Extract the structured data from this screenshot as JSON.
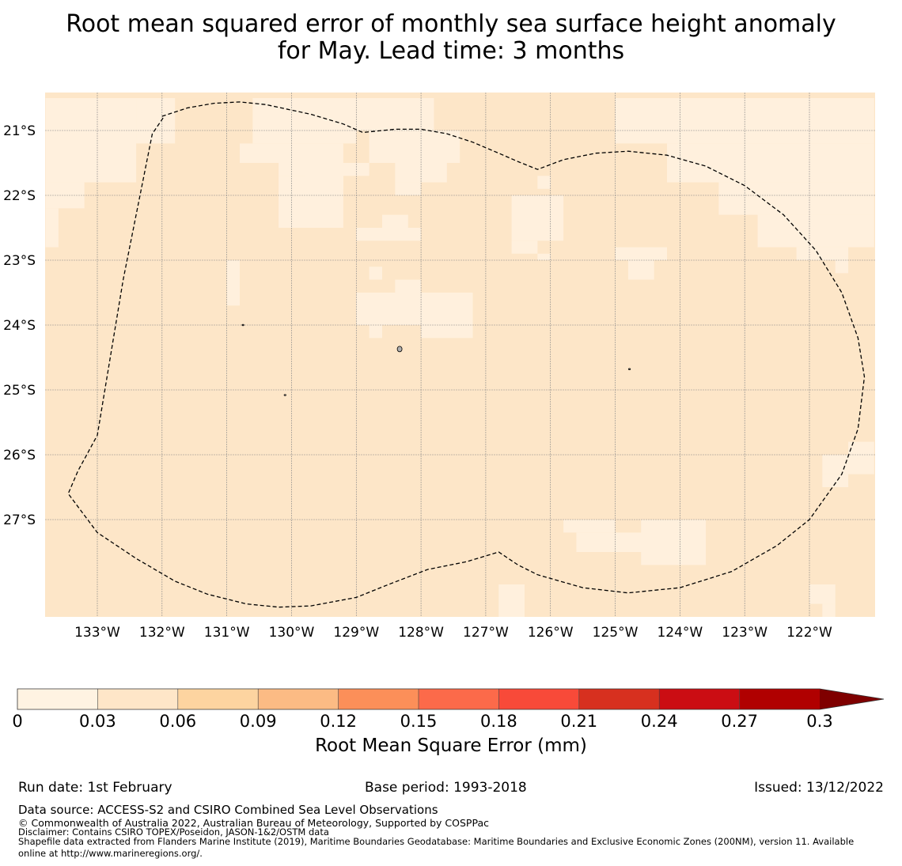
{
  "title": {
    "line1": "Root mean squared error of monthly sea surface height anomaly",
    "line2": "for May. Lead time: 3 months"
  },
  "map": {
    "lat_labels": [
      "21°S",
      "22°S",
      "23°S",
      "24°S",
      "25°S",
      "26°S",
      "27°S"
    ],
    "lon_labels": [
      "133°W",
      "132°W",
      "131°W",
      "130°W",
      "129°W",
      "128°W",
      "127°W",
      "126°W",
      "125°W",
      "124°W",
      "123°W",
      "122°W"
    ],
    "extent": {
      "lon_min": -133.8,
      "lon_max": -121.0,
      "lat_min": -28.5,
      "lat_max": -20.4
    },
    "grid_resolution_deg": 0.25,
    "colors": {
      "ocean_base": "#fde6c8",
      "low_error": "#fff0dd",
      "gridline": "#888888"
    },
    "low_error_cells": [
      [
        -132.4,
        -131.8,
        -20.5,
        -21.2
      ],
      [
        -133.8,
        -132.4,
        -20.5,
        -21.8
      ],
      [
        -133.8,
        -133.2,
        -21.8,
        -22.2
      ],
      [
        -133.8,
        -133.6,
        -22.2,
        -22.8
      ],
      [
        -130.6,
        -129.0,
        -20.5,
        -21.2
      ],
      [
        -130.8,
        -129.4,
        -21.2,
        -21.5
      ],
      [
        -130.2,
        -128.8,
        -21.5,
        -21.7
      ],
      [
        -130.2,
        -129.2,
        -21.7,
        -22.5
      ],
      [
        -129.8,
        -129.2,
        -21.2,
        -21.9
      ],
      [
        -129.0,
        -127.8,
        -20.5,
        -21.0
      ],
      [
        -128.8,
        -127.4,
        -21.0,
        -21.5
      ],
      [
        -128.4,
        -127.6,
        -21.5,
        -21.8
      ],
      [
        -128.4,
        -128.0,
        -21.8,
        -22.0
      ],
      [
        -126.6,
        -125.8,
        -22.0,
        -22.7
      ],
      [
        -126.6,
        -126.2,
        -22.7,
        -22.9
      ],
      [
        -126.2,
        -126.0,
        -22.9,
        -23.0
      ],
      [
        -126.2,
        -126.0,
        -21.7,
        -21.9
      ],
      [
        -129.0,
        -128.0,
        -22.5,
        -22.7
      ],
      [
        -128.6,
        -128.2,
        -22.3,
        -22.5
      ],
      [
        -131.0,
        -130.8,
        -23.0,
        -23.7
      ],
      [
        -129.0,
        -127.2,
        -23.5,
        -24.0
      ],
      [
        -128.8,
        -128.6,
        -23.1,
        -23.3
      ],
      [
        -128.4,
        -128.0,
        -23.3,
        -23.5
      ],
      [
        -128.8,
        -128.6,
        -24.0,
        -24.2
      ],
      [
        -128.0,
        -127.2,
        -24.0,
        -24.2
      ],
      [
        -124.8,
        -124.0,
        -20.5,
        -21.0
      ],
      [
        -125.0,
        -121.0,
        -20.5,
        -21.2
      ],
      [
        -124.2,
        -121.0,
        -21.2,
        -21.8
      ],
      [
        -123.4,
        -121.0,
        -21.8,
        -22.3
      ],
      [
        -122.8,
        -121.0,
        -22.3,
        -22.8
      ],
      [
        -122.2,
        -121.4,
        -22.8,
        -23.0
      ],
      [
        -121.6,
        -121.4,
        -23.0,
        -23.2
      ],
      [
        -125.0,
        -124.2,
        -22.8,
        -23.0
      ],
      [
        -124.8,
        -124.4,
        -23.0,
        -23.3
      ],
      [
        -121.4,
        -121.0,
        -25.8,
        -26.0
      ],
      [
        -121.8,
        -121.0,
        -26.0,
        -26.3
      ],
      [
        -121.8,
        -121.4,
        -26.3,
        -26.5
      ],
      [
        -125.8,
        -125.0,
        -27.0,
        -27.2
      ],
      [
        -125.6,
        -124.4,
        -27.2,
        -27.5
      ],
      [
        -124.6,
        -123.6,
        -27.0,
        -27.7
      ],
      [
        -126.8,
        -126.4,
        -28.0,
        -28.5
      ],
      [
        -122.0,
        -121.6,
        -28.0,
        -28.3
      ],
      [
        -121.8,
        -121.6,
        -28.3,
        -28.5
      ]
    ],
    "islands": [
      [
        -128.33,
        -24.37
      ],
      [
        -130.75,
        -24.0
      ],
      [
        -130.1,
        -25.08
      ],
      [
        -124.78,
        -24.68
      ]
    ]
  },
  "eez_outline_lonlat": [
    [
      -132.0,
      -20.78
    ],
    [
      -131.6,
      -20.65
    ],
    [
      -131.2,
      -20.58
    ],
    [
      -130.8,
      -20.56
    ],
    [
      -130.4,
      -20.6
    ],
    [
      -129.7,
      -20.75
    ],
    [
      -129.2,
      -20.9
    ],
    [
      -128.9,
      -21.03
    ],
    [
      -128.4,
      -20.98
    ],
    [
      -128.0,
      -20.98
    ],
    [
      -127.6,
      -21.05
    ],
    [
      -127.2,
      -21.18
    ],
    [
      -126.8,
      -21.35
    ],
    [
      -126.5,
      -21.48
    ],
    [
      -126.2,
      -21.6
    ],
    [
      -125.8,
      -21.45
    ],
    [
      -125.3,
      -21.35
    ],
    [
      -124.8,
      -21.32
    ],
    [
      -124.2,
      -21.38
    ],
    [
      -123.6,
      -21.55
    ],
    [
      -123.0,
      -21.85
    ],
    [
      -122.4,
      -22.3
    ],
    [
      -121.9,
      -22.85
    ],
    [
      -121.5,
      -23.5
    ],
    [
      -121.25,
      -24.2
    ],
    [
      -121.15,
      -24.8
    ],
    [
      -121.25,
      -25.6
    ],
    [
      -121.5,
      -26.3
    ],
    [
      -122.0,
      -27.0
    ],
    [
      -122.5,
      -27.4
    ],
    [
      -123.2,
      -27.8
    ],
    [
      -124.0,
      -28.05
    ],
    [
      -124.8,
      -28.13
    ],
    [
      -125.5,
      -28.05
    ],
    [
      -126.2,
      -27.85
    ],
    [
      -126.5,
      -27.7
    ],
    [
      -126.8,
      -27.5
    ],
    [
      -127.3,
      -27.65
    ],
    [
      -127.9,
      -27.77
    ],
    [
      -128.5,
      -28.0
    ],
    [
      -129.0,
      -28.2
    ],
    [
      -129.7,
      -28.33
    ],
    [
      -130.2,
      -28.35
    ],
    [
      -130.7,
      -28.3
    ],
    [
      -131.3,
      -28.15
    ],
    [
      -131.8,
      -27.95
    ],
    [
      -132.4,
      -27.6
    ],
    [
      -133.0,
      -27.2
    ],
    [
      -133.45,
      -26.6
    ],
    [
      -133.3,
      -26.25
    ],
    [
      -133.0,
      -25.7
    ],
    [
      -132.6,
      -23.3
    ],
    [
      -132.15,
      -21.05
    ],
    [
      -131.98,
      -20.8
    ]
  ],
  "colorbar": {
    "boundaries": [
      "0",
      "0.03",
      "0.06",
      "0.09",
      "0.12",
      "0.15",
      "0.18",
      "0.21",
      "0.24",
      "0.27",
      "0.3"
    ],
    "colors": [
      "#fff3e2",
      "#fee6c8",
      "#fdd4a0",
      "#fcbb84",
      "#fc8f59",
      "#fc6a4a",
      "#f84a39",
      "#d7301f",
      "#cb0d13",
      "#b00000"
    ],
    "extend_color": "#7f0000",
    "label": "Root Mean Square Error (mm)"
  },
  "footer": {
    "run_date": "Run date: 1st February",
    "base_period": "Base period: 1993-2018",
    "issued": "Issued: 13/12/2022",
    "data_source": "Data source: ACCESS-S2 and CSIRO Combined Sea Level Observations",
    "copyright": "© Commonwealth of Australia 2022, Australian Bureau of Meteorology, Supported by COSPPac",
    "disclaimer": "Disclaimer: Contains CSIRO TOPEX/Poseidon, JASON-1&2/OSTM data",
    "shapefile_line1": "Shapefile data extracted from Flanders Marine Institute (2019), Maritime Boundaries Geodatabase: Maritime Boundaries and Exclusive Economic Zones (200NM), version 11. Available",
    "shapefile_line2": "online at http://www.marineregions.org/."
  }
}
